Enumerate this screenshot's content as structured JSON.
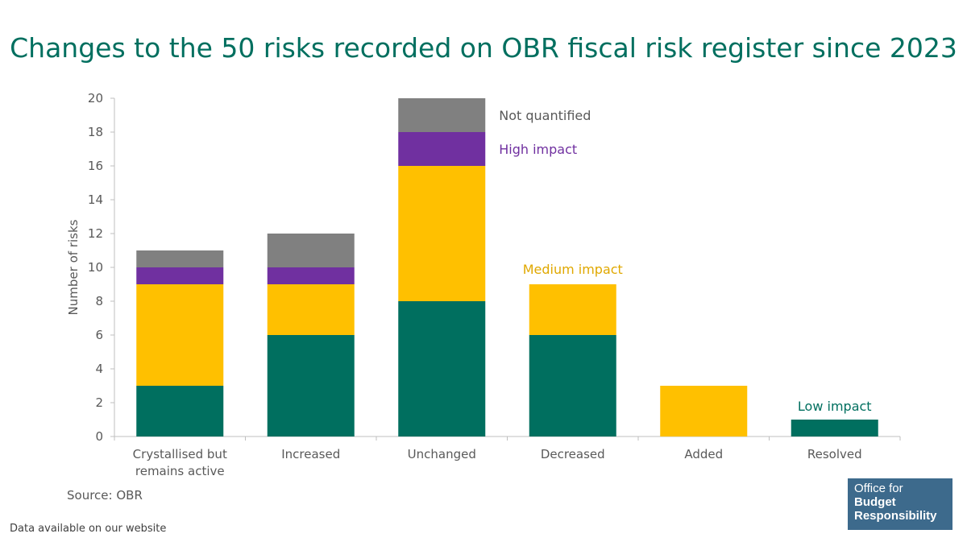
{
  "title": "Changes to the 50 risks recorded on OBR fiscal risk register since 2023",
  "source": "Source: OBR",
  "footer": "Data available on our website",
  "logo": {
    "line1": "Office for",
    "line2": "Budget",
    "line3": "Responsibility"
  },
  "colors": {
    "low": "#006f5f",
    "medium": "#ffc000",
    "high": "#7030a0",
    "notq": "#808080",
    "title": "#006f5f"
  },
  "chart_data": {
    "type": "bar",
    "stacked": true,
    "title": "Changes to the 50 risks recorded on OBR fiscal risk register since 2023",
    "xlabel": "",
    "ylabel": "Number of risks",
    "ylim": [
      0,
      20
    ],
    "yticks": [
      0,
      2,
      4,
      6,
      8,
      10,
      12,
      14,
      16,
      18,
      20
    ],
    "grid": false,
    "categories": [
      [
        "Crystallised but",
        "remains active"
      ],
      [
        "Increased"
      ],
      [
        "Unchanged"
      ],
      [
        "Decreased"
      ],
      [
        "Added"
      ],
      [
        "Resolved"
      ]
    ],
    "series": [
      {
        "name": "Low impact",
        "color": "#006f5f",
        "values": [
          3,
          6,
          8,
          6,
          0,
          1
        ]
      },
      {
        "name": "Medium impact",
        "color": "#ffc000",
        "values": [
          6,
          3,
          8,
          3,
          3,
          0
        ]
      },
      {
        "name": "High impact",
        "color": "#7030a0",
        "values": [
          1,
          1,
          2,
          0,
          0,
          0
        ]
      },
      {
        "name": "Not quantified",
        "color": "#808080",
        "values": [
          1,
          2,
          2,
          0,
          0,
          0
        ]
      }
    ],
    "annotations": [
      {
        "text": "Not quantified",
        "series": 3,
        "bar": 2,
        "level": 19,
        "color": "#595959"
      },
      {
        "text": "High impact",
        "series": 2,
        "bar": 2,
        "level": 17,
        "color": "#7030a0"
      },
      {
        "text": "Medium impact",
        "series": 1,
        "bar": 3,
        "level": 9.9,
        "color": "#e0a800"
      },
      {
        "text": "Low impact",
        "series": 0,
        "bar": 5,
        "level": 1.8,
        "color": "#006f5f"
      }
    ]
  }
}
